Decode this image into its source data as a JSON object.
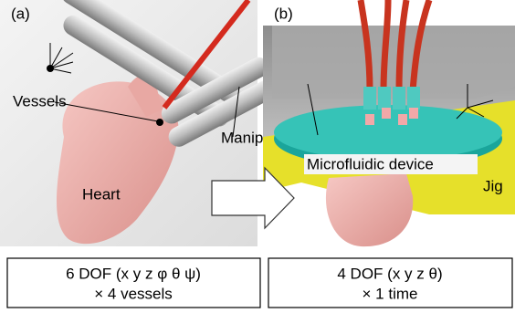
{
  "panels": [
    {
      "tag": "(a)",
      "labels": [
        "Vessels",
        "Manipulator",
        "Heart"
      ]
    },
    {
      "tag": "(b)",
      "labels": [
        "Microfluidic device",
        "Jig"
      ]
    }
  ],
  "boxes": [
    {
      "line1": "6 DOF (x y z φ θ ψ)",
      "line2": "× 4 vessels"
    },
    {
      "line1": "4 DOF (x y z θ)",
      "line2": "× 1 time"
    }
  ]
}
